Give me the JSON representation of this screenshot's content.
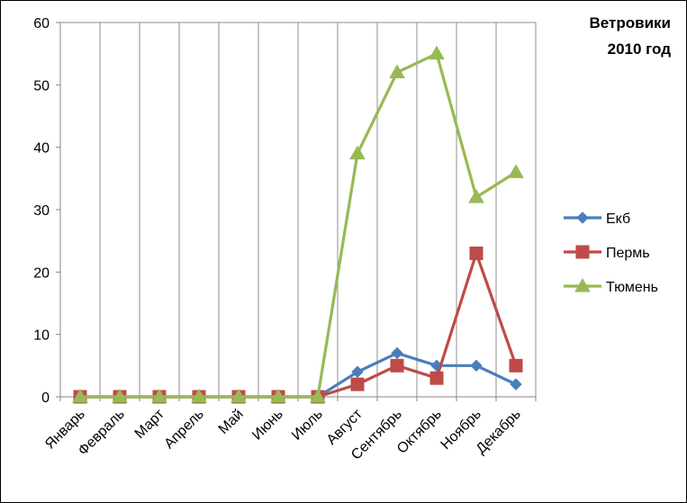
{
  "chart_data": {
    "type": "line",
    "title": [
      "Ветровики",
      "2010 год"
    ],
    "categories": [
      "Январь",
      "Февраль",
      "Март",
      "Апрель",
      "Май",
      "Июнь",
      "Июль",
      "Август",
      "Сентябрь",
      "Октябрь",
      "Ноябрь",
      "Декабрь"
    ],
    "ylim": [
      0,
      60
    ],
    "yticks": [
      0,
      10,
      20,
      30,
      40,
      50,
      60
    ],
    "grid": "vertical",
    "legend_position": "right",
    "series": [
      {
        "name": "Екб",
        "values": [
          0,
          0,
          0,
          0,
          0,
          0,
          0,
          4,
          7,
          5,
          5,
          2
        ],
        "color": "#4a7ebb",
        "marker": "diamond"
      },
      {
        "name": "Пермь",
        "values": [
          0,
          0,
          0,
          0,
          0,
          0,
          0,
          2,
          5,
          3,
          23,
          5
        ],
        "color": "#be4b48",
        "marker": "square"
      },
      {
        "name": "Тюмень",
        "values": [
          0,
          0,
          0,
          0,
          0,
          0,
          0,
          39,
          52,
          55,
          32,
          36
        ],
        "color": "#98b954",
        "marker": "triangle"
      }
    ]
  }
}
